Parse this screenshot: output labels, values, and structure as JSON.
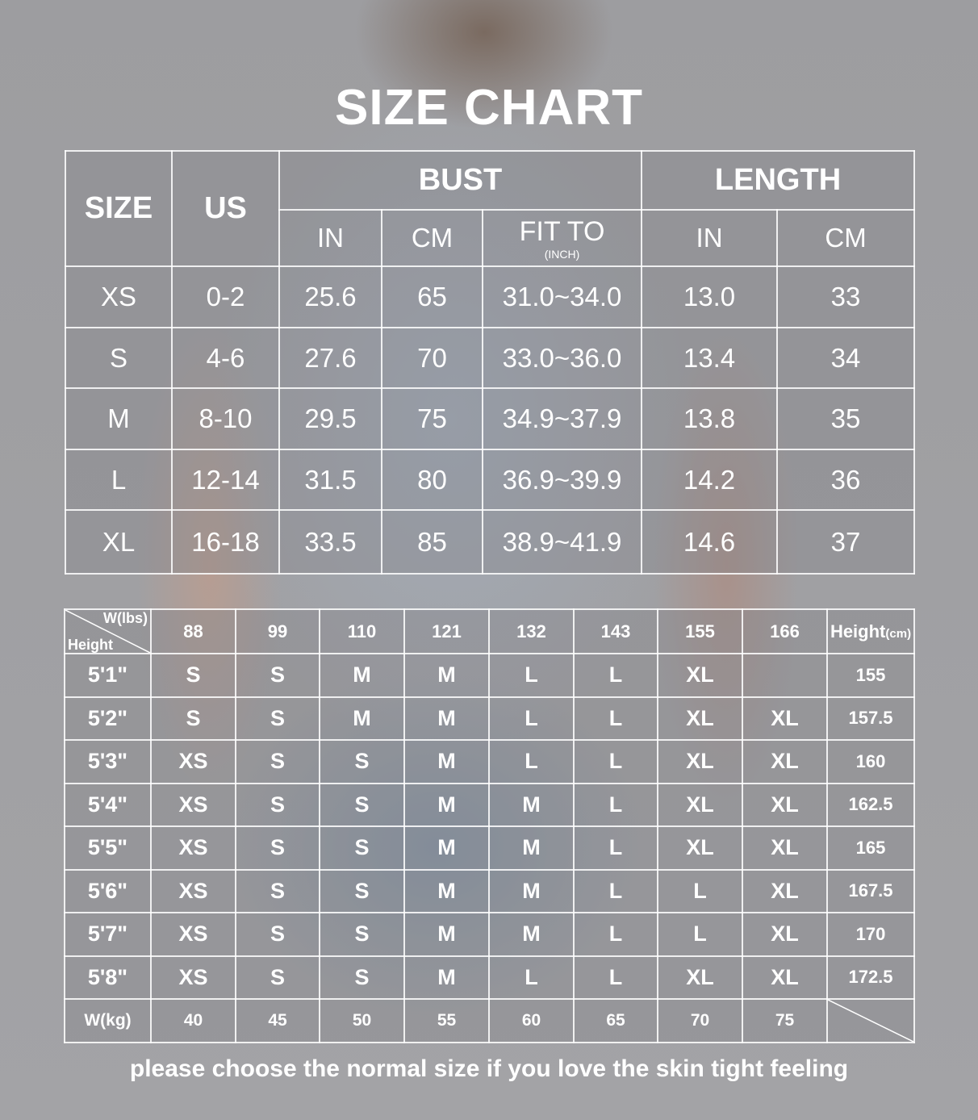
{
  "title": "SIZE CHART",
  "size_table": {
    "headers": {
      "size": "SIZE",
      "us": "US",
      "bust": "BUST",
      "length": "LENGTH",
      "in": "IN",
      "cm": "CM",
      "fit_to": "FIT TO",
      "fit_to_unit": "(INCH)"
    },
    "rows": [
      [
        "XS",
        "0-2",
        "25.6",
        "65",
        "31.0~34.0",
        "13.0",
        "33"
      ],
      [
        "S",
        "4-6",
        "27.6",
        "70",
        "33.0~36.0",
        "13.4",
        "34"
      ],
      [
        "M",
        "8-10",
        "29.5",
        "75",
        "34.9~37.9",
        "13.8",
        "35"
      ],
      [
        "L",
        "12-14",
        "31.5",
        "80",
        "36.9~39.9",
        "14.2",
        "36"
      ],
      [
        "XL",
        "16-18",
        "33.5",
        "85",
        "38.9~41.9",
        "14.6",
        "37"
      ]
    ]
  },
  "fit_table": {
    "corner_top": "W(lbs)",
    "corner_bottom": "Height",
    "weights_lbs": [
      "88",
      "99",
      "110",
      "121",
      "132",
      "143",
      "155",
      "166"
    ],
    "height_cm_header": "Height",
    "height_cm_unit": "(cm)",
    "rows": [
      {
        "h": "5'1\"",
        "s": [
          "S",
          "S",
          "M",
          "M",
          "L",
          "L",
          "XL",
          ""
        ],
        "cm": "155"
      },
      {
        "h": "5'2\"",
        "s": [
          "S",
          "S",
          "M",
          "M",
          "L",
          "L",
          "XL",
          "XL"
        ],
        "cm": "157.5"
      },
      {
        "h": "5'3\"",
        "s": [
          "XS",
          "S",
          "S",
          "M",
          "L",
          "L",
          "XL",
          "XL"
        ],
        "cm": "160"
      },
      {
        "h": "5'4\"",
        "s": [
          "XS",
          "S",
          "S",
          "M",
          "M",
          "L",
          "XL",
          "XL"
        ],
        "cm": "162.5"
      },
      {
        "h": "5'5\"",
        "s": [
          "XS",
          "S",
          "S",
          "M",
          "M",
          "L",
          "XL",
          "XL"
        ],
        "cm": "165"
      },
      {
        "h": "5'6\"",
        "s": [
          "XS",
          "S",
          "S",
          "M",
          "M",
          "L",
          "L",
          "XL"
        ],
        "cm": "167.5"
      },
      {
        "h": "5'7\"",
        "s": [
          "XS",
          "S",
          "S",
          "M",
          "M",
          "L",
          "L",
          "XL"
        ],
        "cm": "170"
      },
      {
        "h": "5'8\"",
        "s": [
          "XS",
          "S",
          "S",
          "M",
          "L",
          "L",
          "XL",
          "XL"
        ],
        "cm": "172.5"
      }
    ],
    "kg_label": "W(kg)",
    "weights_kg": [
      "40",
      "45",
      "50",
      "55",
      "60",
      "65",
      "70",
      "75"
    ]
  },
  "note": "please choose the normal size if you love the skin tight feeling"
}
